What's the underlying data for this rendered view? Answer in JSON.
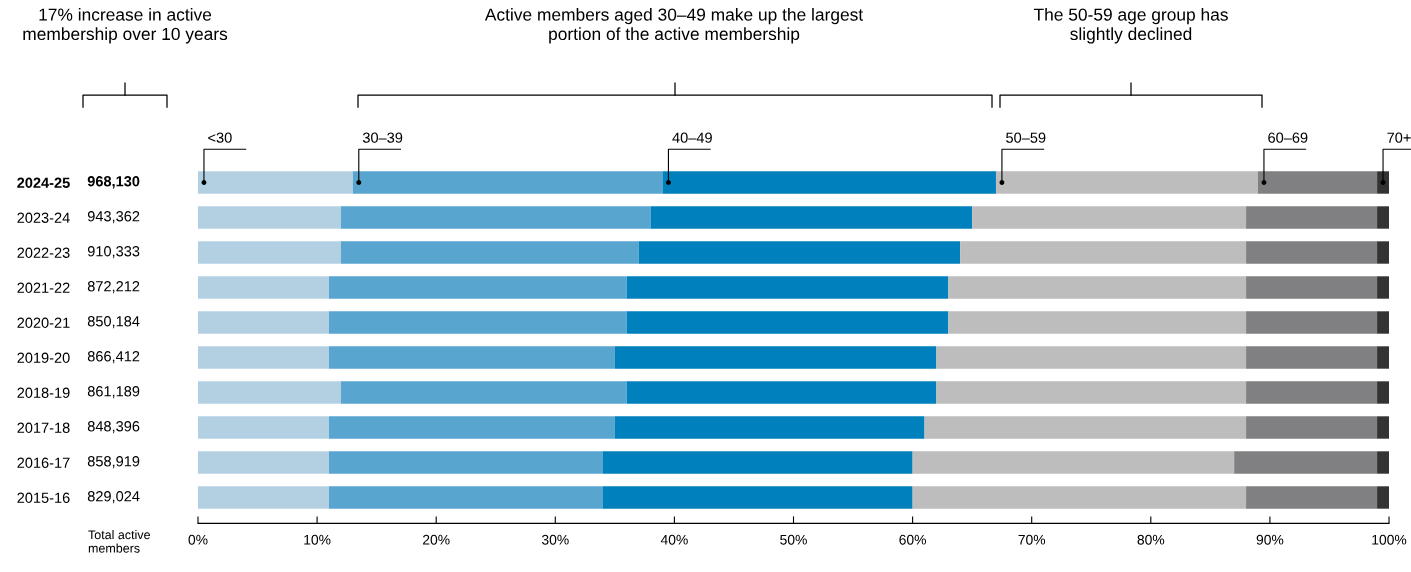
{
  "chart_data": {
    "type": "bar",
    "orientation": "horizontal",
    "stacked": true,
    "categories": [
      "2024-25",
      "2023-24",
      "2022-23",
      "2021-22",
      "2020-21",
      "2019-20",
      "2018-19",
      "2017-18",
      "2016-17",
      "2015-16"
    ],
    "series": [
      {
        "name": "<30",
        "color": "#b3d0e3",
        "values": [
          13,
          12,
          12,
          11,
          11,
          11,
          12,
          11,
          11,
          11
        ]
      },
      {
        "name": "30–39",
        "color": "#58a5cf",
        "values": [
          26,
          26,
          25,
          25,
          25,
          24,
          24,
          24,
          23,
          23
        ]
      },
      {
        "name": "40–49",
        "color": "#0080bd",
        "values": [
          28,
          27,
          27,
          27,
          27,
          27,
          26,
          26,
          26,
          26
        ]
      },
      {
        "name": "50–59",
        "color": "#bdbdbd",
        "values": [
          22,
          23,
          24,
          25,
          25,
          26,
          26,
          27,
          27,
          28
        ]
      },
      {
        "name": "60–69",
        "color": "#808083",
        "values": [
          10,
          11,
          11,
          11,
          11,
          11,
          11,
          11,
          12,
          11
        ]
      },
      {
        "name": "70+",
        "color": "#333333",
        "values": [
          1,
          1,
          1,
          1,
          1,
          1,
          1,
          1,
          1,
          1
        ]
      }
    ],
    "xlim": [
      0,
      100
    ],
    "xticks": [
      {
        "value": 0,
        "label": "0%"
      },
      {
        "value": 10,
        "label": "10%"
      },
      {
        "value": 20,
        "label": "20%"
      },
      {
        "value": 30,
        "label": "30%"
      },
      {
        "value": 40,
        "label": "40%"
      },
      {
        "value": 50,
        "label": "50%"
      },
      {
        "value": 60,
        "label": "60%"
      },
      {
        "value": 70,
        "label": "70%"
      },
      {
        "value": 80,
        "label": "80%"
      },
      {
        "value": 90,
        "label": "90%"
      },
      {
        "value": 100,
        "label": "100%"
      }
    ],
    "annotations": [
      "17% increase in active membership over 10 years",
      "Active members aged 30–49 make up the largest portion of the active membership",
      "The 50-59 age group has slightly declined",
      "Total active members",
      "968,130",
      "943,362",
      "910,333",
      "872,212",
      "850,184",
      "866,412",
      "861,189",
      "848,396",
      "858,919",
      "829,024"
    ],
    "grid": false,
    "legend": false
  }
}
